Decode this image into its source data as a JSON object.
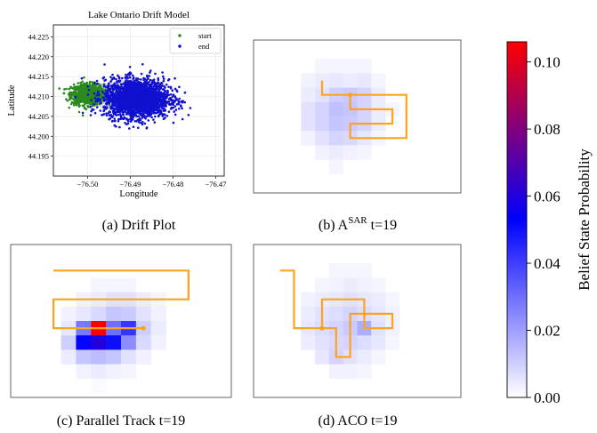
{
  "chart_data": [
    {
      "type": "scatter",
      "title": "Lake Ontario Drift Model",
      "xlabel": "Longitude",
      "ylabel": "Latitude",
      "xlim": [
        -76.508,
        -76.468
      ],
      "ylim": [
        44.19,
        44.228
      ],
      "xticks": [
        -76.5,
        -76.49,
        -76.48,
        -76.47
      ],
      "xtick_labels": [
        "−76.50",
        "−76.49",
        "−76.48",
        "−76.47"
      ],
      "yticks": [
        44.195,
        44.2,
        44.205,
        44.21,
        44.215,
        44.22,
        44.225
      ],
      "ytick_labels": [
        "44.195",
        "44.200",
        "44.205",
        "44.210",
        "44.215",
        "44.220",
        "44.225"
      ],
      "grid": true,
      "legend": "top-right",
      "series": [
        {
          "name": "start",
          "color": "#2a8a1e",
          "center": [
            -76.5,
            44.2105
          ],
          "spread": [
            0.0019,
            0.0013
          ]
        },
        {
          "name": "end",
          "color": "#1010d0",
          "center": [
            -76.4885,
            44.2095
          ],
          "spread": [
            0.0038,
            0.0024
          ]
        }
      ],
      "caption": "(a) Drift Plot"
    },
    {
      "type": "heatmap",
      "caption_prefix": "(b) A",
      "caption_sup": "SAR",
      "caption_suffix": " t=19",
      "grid_size": [
        10,
        14
      ],
      "cells": [
        [
          1,
          4,
          2
        ],
        [
          1,
          5,
          2
        ],
        [
          1,
          6,
          2
        ],
        [
          1,
          7,
          2
        ],
        [
          2,
          3,
          3
        ],
        [
          2,
          4,
          4
        ],
        [
          2,
          5,
          5
        ],
        [
          2,
          6,
          4
        ],
        [
          2,
          7,
          5
        ],
        [
          2,
          8,
          2
        ],
        [
          3,
          3,
          4
        ],
        [
          3,
          4,
          6
        ],
        [
          3,
          5,
          10
        ],
        [
          3,
          6,
          11
        ],
        [
          3,
          7,
          9
        ],
        [
          3,
          8,
          4
        ],
        [
          4,
          3,
          6
        ],
        [
          4,
          4,
          9
        ],
        [
          4,
          5,
          13
        ],
        [
          4,
          6,
          12
        ],
        [
          4,
          7,
          9
        ],
        [
          4,
          8,
          4
        ],
        [
          4,
          9,
          2
        ],
        [
          5,
          3,
          6
        ],
        [
          5,
          4,
          9
        ],
        [
          5,
          5,
          12
        ],
        [
          5,
          6,
          11
        ],
        [
          5,
          7,
          9
        ],
        [
          5,
          8,
          4
        ],
        [
          6,
          3,
          3
        ],
        [
          6,
          4,
          6
        ],
        [
          6,
          5,
          9
        ],
        [
          6,
          6,
          8
        ],
        [
          6,
          7,
          5
        ],
        [
          6,
          8,
          2
        ],
        [
          7,
          4,
          3
        ],
        [
          7,
          5,
          4
        ],
        [
          7,
          6,
          3
        ],
        [
          7,
          7,
          2
        ],
        [
          8,
          5,
          2
        ]
      ],
      "path": [
        [
          2,
          4
        ],
        [
          3,
          4
        ],
        [
          3,
          5
        ],
        [
          3,
          6
        ],
        [
          3,
          7
        ],
        [
          3,
          8
        ],
        [
          3,
          9
        ],
        [
          3,
          10
        ],
        [
          4,
          10
        ],
        [
          5,
          10
        ],
        [
          6,
          10
        ],
        [
          6,
          9
        ],
        [
          6,
          8
        ],
        [
          6,
          7
        ],
        [
          6,
          6
        ],
        [
          5,
          6
        ],
        [
          5,
          7
        ],
        [
          5,
          8
        ],
        [
          5,
          9
        ],
        [
          4,
          9
        ],
        [
          4,
          8
        ],
        [
          4,
          7
        ],
        [
          4,
          6
        ],
        [
          3,
          6
        ]
      ],
      "path_dot": [
        3,
        6
      ]
    },
    {
      "type": "heatmap",
      "caption": "(c) Parallel Track t=19",
      "grid_size": [
        10,
        14
      ],
      "cells": [
        [
          2,
          5,
          2
        ],
        [
          2,
          6,
          2
        ],
        [
          2,
          7,
          2
        ],
        [
          3,
          4,
          3
        ],
        [
          3,
          5,
          4
        ],
        [
          3,
          6,
          6
        ],
        [
          3,
          7,
          6
        ],
        [
          3,
          8,
          4
        ],
        [
          3,
          9,
          2
        ],
        [
          4,
          3,
          3
        ],
        [
          4,
          4,
          5
        ],
        [
          4,
          5,
          8
        ],
        [
          4,
          6,
          12
        ],
        [
          4,
          7,
          11
        ],
        [
          4,
          8,
          6
        ],
        [
          4,
          9,
          3
        ],
        [
          5,
          3,
          5
        ],
        [
          5,
          4,
          28
        ],
        [
          5,
          5,
          105
        ],
        [
          5,
          6,
          30
        ],
        [
          5,
          7,
          42
        ],
        [
          5,
          8,
          10
        ],
        [
          5,
          9,
          4
        ],
        [
          6,
          3,
          10
        ],
        [
          6,
          4,
          52
        ],
        [
          6,
          5,
          60
        ],
        [
          6,
          6,
          50
        ],
        [
          6,
          7,
          24
        ],
        [
          6,
          8,
          8
        ],
        [
          6,
          9,
          3
        ],
        [
          7,
          3,
          4
        ],
        [
          7,
          4,
          12
        ],
        [
          7,
          5,
          14
        ],
        [
          7,
          6,
          12
        ],
        [
          7,
          7,
          6
        ],
        [
          7,
          8,
          3
        ],
        [
          8,
          4,
          3
        ],
        [
          8,
          5,
          4
        ],
        [
          8,
          6,
          3
        ],
        [
          8,
          7,
          2
        ],
        [
          9,
          5,
          1
        ]
      ],
      "path": [
        [
          1,
          2
        ],
        [
          1,
          3
        ],
        [
          1,
          4
        ],
        [
          1,
          5
        ],
        [
          1,
          6
        ],
        [
          1,
          7
        ],
        [
          1,
          8
        ],
        [
          1,
          9
        ],
        [
          1,
          10
        ],
        [
          1,
          11
        ],
        [
          2,
          11
        ],
        [
          3,
          11
        ],
        [
          3,
          10
        ],
        [
          3,
          9
        ],
        [
          3,
          8
        ],
        [
          3,
          7
        ],
        [
          3,
          6
        ],
        [
          3,
          5
        ],
        [
          3,
          4
        ],
        [
          3,
          3
        ],
        [
          3,
          2
        ],
        [
          4,
          2
        ],
        [
          5,
          2
        ],
        [
          5,
          3
        ],
        [
          5,
          4
        ],
        [
          5,
          5
        ],
        [
          5,
          6
        ],
        [
          5,
          7
        ],
        [
          5,
          8
        ]
      ],
      "path_dot": [
        5,
        8
      ]
    },
    {
      "type": "heatmap",
      "caption": "(d) ACO t=19",
      "grid_size": [
        10,
        14
      ],
      "cells": [
        [
          1,
          5,
          2
        ],
        [
          1,
          6,
          2
        ],
        [
          1,
          7,
          2
        ],
        [
          2,
          4,
          2
        ],
        [
          2,
          5,
          3
        ],
        [
          2,
          6,
          4
        ],
        [
          2,
          7,
          3
        ],
        [
          2,
          8,
          2
        ],
        [
          3,
          3,
          3
        ],
        [
          3,
          4,
          4
        ],
        [
          3,
          5,
          5
        ],
        [
          3,
          6,
          6
        ],
        [
          3,
          7,
          5
        ],
        [
          3,
          8,
          4
        ],
        [
          3,
          9,
          2
        ],
        [
          4,
          3,
          4
        ],
        [
          4,
          4,
          6
        ],
        [
          4,
          5,
          7
        ],
        [
          4,
          6,
          9
        ],
        [
          4,
          7,
          7
        ],
        [
          4,
          8,
          5
        ],
        [
          4,
          9,
          3
        ],
        [
          5,
          3,
          5
        ],
        [
          5,
          4,
          7
        ],
        [
          5,
          5,
          9
        ],
        [
          5,
          6,
          11
        ],
        [
          5,
          7,
          17
        ],
        [
          5,
          8,
          6
        ],
        [
          5,
          9,
          3
        ],
        [
          6,
          3,
          4
        ],
        [
          6,
          4,
          6
        ],
        [
          6,
          5,
          8
        ],
        [
          6,
          6,
          9
        ],
        [
          6,
          7,
          7
        ],
        [
          6,
          8,
          5
        ],
        [
          6,
          9,
          2
        ],
        [
          7,
          4,
          5
        ],
        [
          7,
          5,
          9
        ],
        [
          7,
          6,
          6
        ],
        [
          7,
          7,
          4
        ],
        [
          7,
          8,
          2
        ],
        [
          8,
          5,
          3
        ],
        [
          8,
          6,
          3
        ],
        [
          8,
          7,
          2
        ]
      ],
      "path": [
        [
          1,
          1
        ],
        [
          1,
          2
        ],
        [
          2,
          2
        ],
        [
          3,
          2
        ],
        [
          4,
          2
        ],
        [
          5,
          2
        ],
        [
          5,
          3
        ],
        [
          5,
          4
        ],
        [
          4,
          4
        ],
        [
          3,
          4
        ],
        [
          3,
          5
        ],
        [
          3,
          6
        ],
        [
          3,
          7
        ],
        [
          4,
          7
        ],
        [
          5,
          7
        ],
        [
          5,
          8
        ],
        [
          5,
          9
        ],
        [
          4,
          9
        ],
        [
          4,
          8
        ],
        [
          4,
          7
        ],
        [
          4,
          6
        ],
        [
          5,
          6
        ],
        [
          6,
          6
        ],
        [
          7,
          6
        ],
        [
          7,
          5
        ],
        [
          6,
          5
        ],
        [
          5,
          5
        ],
        [
          5,
          4
        ]
      ],
      "path_dot": [
        5,
        4
      ]
    }
  ],
  "colorbar": {
    "label": "Belief State Probability",
    "ticks": [
      "0.00",
      "0.02",
      "0.04",
      "0.06",
      "0.08",
      "0.10"
    ],
    "tick_values": [
      0.0,
      0.02,
      0.04,
      0.06,
      0.08,
      0.1
    ],
    "range": [
      0.0,
      0.106
    ],
    "colormap": "bwr",
    "cell_value_unit": 0.001
  },
  "colors": {
    "path": "#ffa31a",
    "heat_low": "#ffffff",
    "heat_mid": "#0000ff",
    "heat_high": "#ff0000"
  }
}
